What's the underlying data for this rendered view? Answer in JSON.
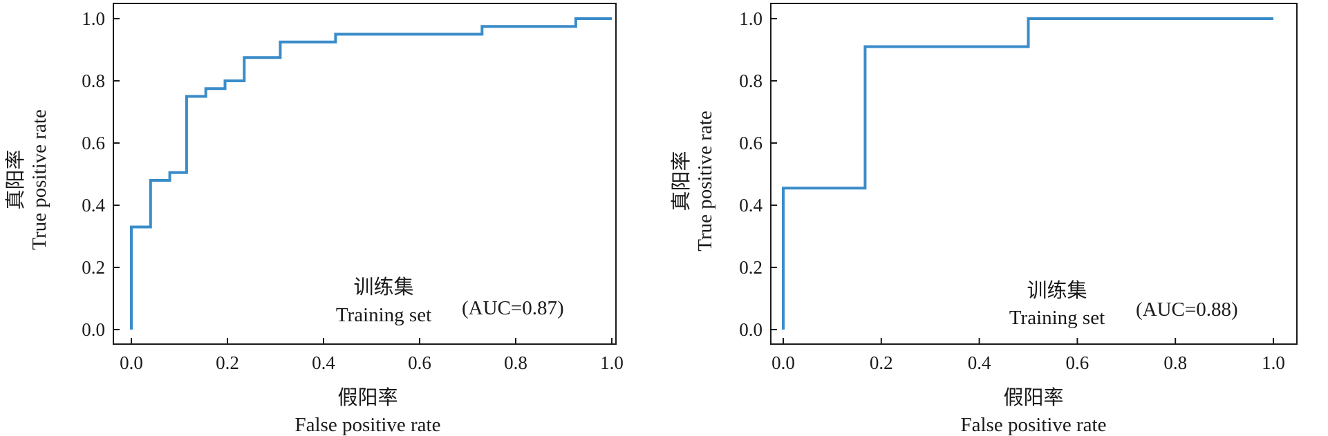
{
  "chart_data": [
    {
      "type": "line",
      "step": true,
      "xlabel_cn": "假阳率",
      "xlabel_en": "False positive rate",
      "ylabel_cn": "真阳率",
      "ylabel_en": "True positive rate",
      "xlim": [
        0.0,
        1.0
      ],
      "ylim": [
        0.0,
        1.0
      ],
      "xticks": [
        "0.0",
        "0.2",
        "0.4",
        "0.6",
        "0.8",
        "1.0"
      ],
      "yticks": [
        "0.0",
        "0.2",
        "0.4",
        "0.6",
        "0.8",
        "1.0"
      ],
      "grid": false,
      "annotation_cn": "训练集",
      "annotation_en": "Training set",
      "annotation_auc": "(AUC=0.87)",
      "series_color": "#3a8cc8",
      "x": [
        0.0,
        0.0,
        0.04,
        0.04,
        0.08,
        0.08,
        0.115,
        0.115,
        0.155,
        0.155,
        0.195,
        0.195,
        0.235,
        0.235,
        0.31,
        0.31,
        0.425,
        0.425,
        0.73,
        0.73,
        0.925,
        0.925,
        1.0
      ],
      "y": [
        0.0,
        0.33,
        0.33,
        0.48,
        0.48,
        0.505,
        0.505,
        0.75,
        0.75,
        0.775,
        0.775,
        0.8,
        0.8,
        0.875,
        0.875,
        0.925,
        0.925,
        0.95,
        0.95,
        0.975,
        0.975,
        1.0,
        1.0
      ]
    },
    {
      "type": "line",
      "step": true,
      "xlabel_cn": "假阳率",
      "xlabel_en": "False positive rate",
      "ylabel_cn": "真阳率",
      "ylabel_en": "True positive rate",
      "xlim": [
        0.0,
        1.0
      ],
      "ylim": [
        0.0,
        1.0
      ],
      "xticks": [
        "0.0",
        "0.2",
        "0.4",
        "0.6",
        "0.8",
        "1.0"
      ],
      "yticks": [
        "0.0",
        "0.2",
        "0.4",
        "0.6",
        "0.8",
        "1.0"
      ],
      "grid": false,
      "annotation_cn": "训练集",
      "annotation_en": "Training set",
      "annotation_auc": "(AUC=0.88)",
      "series_color": "#3a8cc8",
      "x": [
        0.0,
        0.0,
        0.167,
        0.167,
        0.5,
        0.5,
        1.0
      ],
      "y": [
        0.0,
        0.455,
        0.455,
        0.91,
        0.91,
        1.0,
        1.0
      ]
    }
  ]
}
